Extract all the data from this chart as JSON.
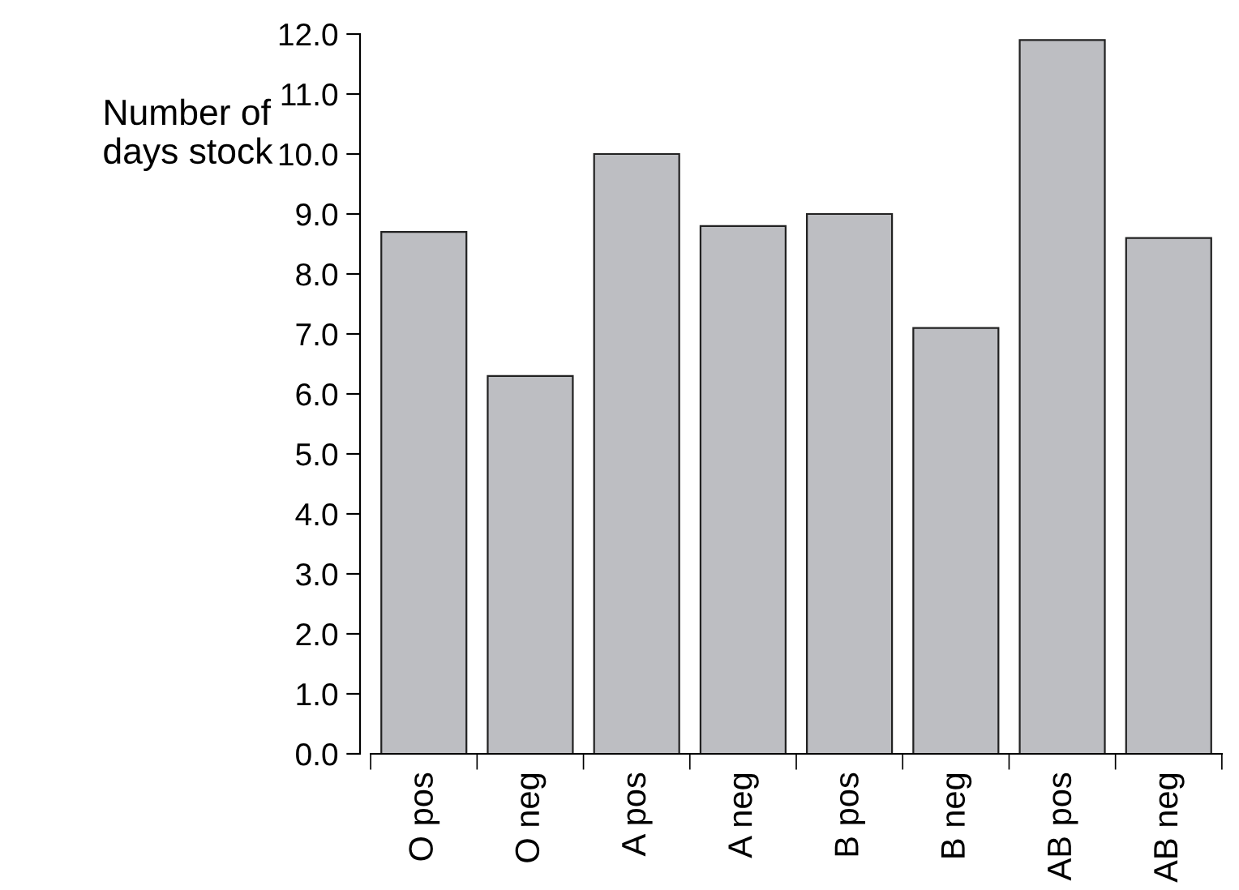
{
  "chart_data": {
    "type": "bar",
    "ylabel": "Number of\ndays stock",
    "categories": [
      "O pos",
      "O neg",
      "A pos",
      "A neg",
      "B pos",
      "B neg",
      "AB pos",
      "AB neg"
    ],
    "values": [
      8.7,
      6.3,
      10.0,
      8.8,
      9.0,
      7.1,
      11.9,
      8.6
    ],
    "color": "#bdbec2",
    "ylim": [
      0,
      12
    ],
    "yticks": [
      {
        "value": 0,
        "label": "0.0"
      },
      {
        "value": 1,
        "label": "1.0"
      },
      {
        "value": 2,
        "label": "2.0"
      },
      {
        "value": 3,
        "label": "3.0"
      },
      {
        "value": 4,
        "label": "4.0"
      },
      {
        "value": 5,
        "label": "5.0"
      },
      {
        "value": 6,
        "label": "6.0"
      },
      {
        "value": 7,
        "label": "7.0"
      },
      {
        "value": 8,
        "label": "8.0"
      },
      {
        "value": 9,
        "label": "9.0"
      },
      {
        "value": 10,
        "label": "10.0"
      },
      {
        "value": 11,
        "label": "11.0"
      },
      {
        "value": 12,
        "label": "12.0"
      }
    ],
    "grid": false
  }
}
